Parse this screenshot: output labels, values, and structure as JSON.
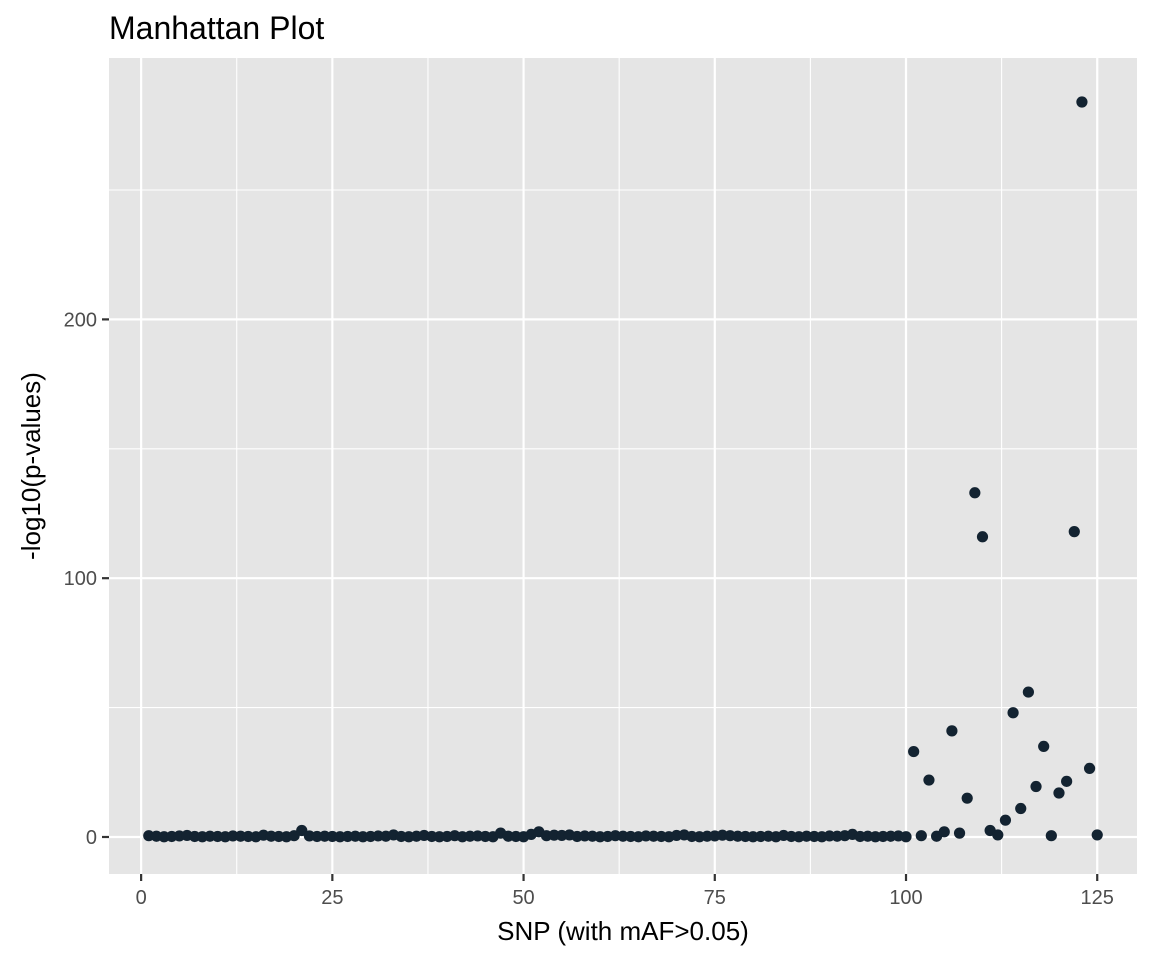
{
  "chart_data": {
    "type": "scatter",
    "title": "Manhattan Plot",
    "xlabel": "SNP (with mAF>0.05)",
    "ylabel": "-log10(p-values)",
    "xlim": [
      -4.2,
      130.2
    ],
    "ylim": [
      -14.3,
      301
    ],
    "x_ticks": [
      0,
      25,
      50,
      75,
      100,
      125
    ],
    "y_ticks": [
      0,
      100,
      200
    ],
    "y_minor_ticks": [
      50,
      150,
      250
    ],
    "grid": true,
    "point_color": "#132331",
    "panel_color": "#e5e5e5",
    "grid_color": "#ffffff",
    "points": {
      "x": [
        1,
        2,
        3,
        4,
        5,
        6,
        7,
        8,
        9,
        10,
        11,
        12,
        13,
        14,
        15,
        16,
        17,
        18,
        19,
        20,
        21,
        22,
        23,
        24,
        25,
        26,
        27,
        28,
        29,
        30,
        31,
        32,
        33,
        34,
        35,
        36,
        37,
        38,
        39,
        40,
        41,
        42,
        43,
        44,
        45,
        46,
        47,
        48,
        49,
        50,
        51,
        52,
        53,
        54,
        55,
        56,
        57,
        58,
        59,
        60,
        61,
        62,
        63,
        64,
        65,
        66,
        67,
        68,
        69,
        70,
        71,
        72,
        73,
        74,
        75,
        76,
        77,
        78,
        79,
        80,
        81,
        82,
        83,
        84,
        85,
        86,
        87,
        88,
        89,
        90,
        91,
        92,
        93,
        94,
        95,
        96,
        97,
        98,
        99,
        100,
        101,
        102,
        103,
        104,
        105,
        106,
        107,
        108,
        109,
        110,
        111,
        112,
        113,
        114,
        115,
        116,
        117,
        118,
        119,
        120,
        121,
        122,
        123,
        124,
        125
      ],
      "y": [
        0.5,
        0.3,
        0.1,
        0.2,
        0.4,
        0.6,
        0.2,
        0.1,
        0.3,
        0.2,
        0.1,
        0.4,
        0.3,
        0.2,
        0.1,
        0.7,
        0.3,
        0.2,
        0.1,
        0.5,
        2.5,
        0.4,
        0.2,
        0.3,
        0.2,
        0.1,
        0.2,
        0.3,
        0.1,
        0.2,
        0.4,
        0.3,
        0.8,
        0.2,
        0.1,
        0.3,
        0.6,
        0.2,
        0.1,
        0.2,
        0.5,
        0.1,
        0.3,
        0.4,
        0.2,
        0.1,
        1.5,
        0.3,
        0.2,
        0.1,
        1.0,
        2.0,
        0.5,
        0.7,
        0.6,
        0.8,
        0.2,
        0.4,
        0.3,
        0.1,
        0.2,
        0.5,
        0.3,
        0.2,
        0.1,
        0.4,
        0.3,
        0.2,
        0.1,
        0.6,
        0.8,
        0.2,
        0.1,
        0.3,
        0.4,
        0.7,
        0.5,
        0.3,
        0.2,
        0.1,
        0.2,
        0.3,
        0.1,
        0.6,
        0.2,
        0.1,
        0.3,
        0.2,
        0.1,
        0.4,
        0.3,
        0.5,
        1.0,
        0.2,
        0.3,
        0.1,
        0.2,
        0.3,
        0.4,
        0.1,
        33,
        0.5,
        22,
        0.3,
        2,
        41,
        1.5,
        15,
        133,
        116,
        2.5,
        0.8,
        6.5,
        48,
        11,
        56,
        19.5,
        35,
        0.5,
        17,
        21.5,
        118,
        284,
        26.5,
        0.8
      ]
    }
  }
}
